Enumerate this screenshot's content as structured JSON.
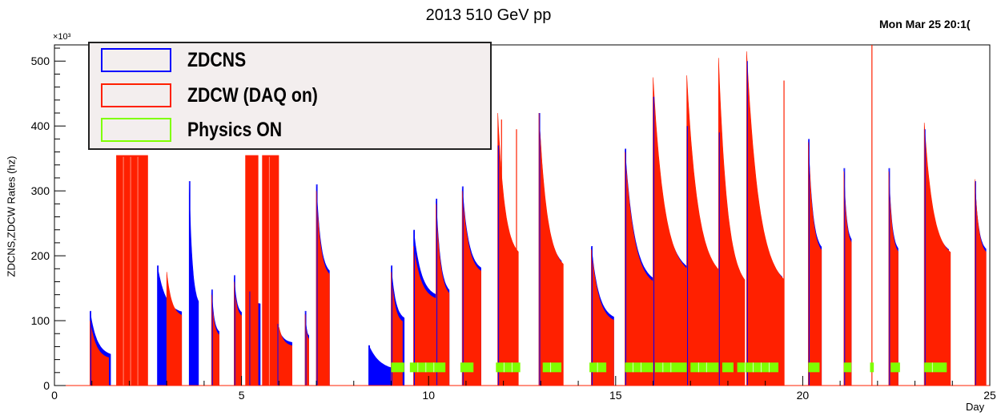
{
  "title": "2013 510 GeV pp",
  "timestamp": "Mon Mar 25 20:1(",
  "chart_data": {
    "type": "bar",
    "title": "2013 510 GeV pp",
    "xlabel": "Day",
    "ylabel": "ZDCNS,ZDCW Rates (hz)",
    "y_exponent_label": "×10³",
    "xlim": [
      0,
      25
    ],
    "ylim": [
      0,
      525
    ],
    "x_ticks": [
      "0",
      "5",
      "10",
      "15",
      "20",
      "25"
    ],
    "y_ticks": [
      "0",
      "100",
      "200",
      "300",
      "400",
      "500"
    ],
    "grid": false,
    "legend_position": "top-left",
    "series": [
      {
        "name": "ZDCNS",
        "color": "#0000ff",
        "fills": [
          {
            "start": 0.95,
            "end": 1.5,
            "peak": 115,
            "low": 45
          },
          {
            "start": 2.75,
            "end": 3.4,
            "peak": 185,
            "low": 110
          },
          {
            "start": 3.6,
            "end": 3.85,
            "peak": 315,
            "low": 120
          },
          {
            "start": 4.2,
            "end": 4.4,
            "peak": 148,
            "low": 80
          },
          {
            "start": 4.8,
            "end": 5.0,
            "peak": 170,
            "low": 110
          },
          {
            "start": 5.2,
            "end": 5.5,
            "peak": 145,
            "low": 125
          },
          {
            "start": 5.95,
            "end": 6.35,
            "peak": 95,
            "low": 65
          },
          {
            "start": 6.7,
            "end": 6.8,
            "peak": 115,
            "low": 75
          },
          {
            "start": 7.0,
            "end": 7.35,
            "peak": 310,
            "low": 170
          },
          {
            "start": 8.4,
            "end": 9.3,
            "peak": 62,
            "low": 22
          },
          {
            "start": 9.0,
            "end": 9.35,
            "peak": 185,
            "low": 100
          },
          {
            "start": 9.6,
            "end": 10.2,
            "peak": 240,
            "low": 135
          },
          {
            "start": 10.2,
            "end": 10.55,
            "peak": 288,
            "low": 140
          },
          {
            "start": 10.9,
            "end": 11.4,
            "peak": 307,
            "low": 175
          },
          {
            "start": 11.85,
            "end": 12.3,
            "peak": 370,
            "low": 200
          },
          {
            "start": 12.95,
            "end": 13.55,
            "peak": 420,
            "low": 180
          },
          {
            "start": 14.35,
            "end": 14.95,
            "peak": 215,
            "low": 100
          },
          {
            "start": 15.25,
            "end": 16.0,
            "peak": 365,
            "low": 155
          },
          {
            "start": 16.0,
            "end": 16.9,
            "peak": 445,
            "low": 170
          },
          {
            "start": 16.9,
            "end": 17.75,
            "peak": 400,
            "low": 165
          },
          {
            "start": 17.75,
            "end": 18.4,
            "peak": 390,
            "low": 150
          },
          {
            "start": 18.5,
            "end": 19.45,
            "peak": 500,
            "low": 150
          },
          {
            "start": 20.15,
            "end": 20.5,
            "peak": 380,
            "low": 205
          },
          {
            "start": 21.1,
            "end": 21.3,
            "peak": 335,
            "low": 220
          },
          {
            "start": 22.3,
            "end": 22.55,
            "peak": 335,
            "low": 205
          },
          {
            "start": 23.25,
            "end": 23.9,
            "peak": 395,
            "low": 200
          },
          {
            "start": 24.6,
            "end": 24.9,
            "peak": 315,
            "low": 205
          }
        ]
      },
      {
        "name": "ZDCW (DAQ on)",
        "color": "#ff2000",
        "fills": [
          {
            "start": 0.95,
            "end": 1.45,
            "peak": 100,
            "low": 40
          },
          {
            "start": 1.65,
            "end": 2.5,
            "peak": 355,
            "low": 355
          },
          {
            "start": 3.0,
            "end": 3.4,
            "peak": 175,
            "low": 105
          },
          {
            "start": 4.2,
            "end": 4.4,
            "peak": 140,
            "low": 75
          },
          {
            "start": 4.8,
            "end": 5.0,
            "peak": 160,
            "low": 105
          },
          {
            "start": 5.1,
            "end": 5.45,
            "peak": 355,
            "low": 355
          },
          {
            "start": 5.55,
            "end": 6.0,
            "peak": 355,
            "low": 355
          },
          {
            "start": 6.0,
            "end": 6.35,
            "peak": 90,
            "low": 60
          },
          {
            "start": 6.7,
            "end": 6.8,
            "peak": 110,
            "low": 70
          },
          {
            "start": 7.0,
            "end": 7.35,
            "peak": 300,
            "low": 165
          },
          {
            "start": 9.0,
            "end": 9.3,
            "peak": 175,
            "low": 95
          },
          {
            "start": 9.6,
            "end": 10.2,
            "peak": 215,
            "low": 130
          },
          {
            "start": 10.2,
            "end": 10.55,
            "peak": 280,
            "low": 135
          },
          {
            "start": 10.9,
            "end": 11.4,
            "peak": 300,
            "low": 170
          },
          {
            "start": 11.85,
            "end": 12.4,
            "peak": 420,
            "low": 195
          },
          {
            "start": 12.95,
            "end": 13.6,
            "peak": 420,
            "low": 175
          },
          {
            "start": 14.35,
            "end": 14.95,
            "peak": 210,
            "low": 95
          },
          {
            "start": 15.25,
            "end": 16.0,
            "peak": 360,
            "low": 150
          },
          {
            "start": 16.0,
            "end": 16.9,
            "peak": 475,
            "low": 165
          },
          {
            "start": 16.9,
            "end": 17.8,
            "peak": 478,
            "low": 160
          },
          {
            "start": 17.75,
            "end": 18.45,
            "peak": 505,
            "low": 145
          },
          {
            "start": 18.5,
            "end": 19.5,
            "peak": 515,
            "low": 145
          },
          {
            "start": 20.15,
            "end": 20.5,
            "peak": 375,
            "low": 200
          },
          {
            "start": 21.1,
            "end": 21.3,
            "peak": 330,
            "low": 215
          },
          {
            "start": 22.3,
            "end": 22.55,
            "peak": 330,
            "low": 200
          },
          {
            "start": 23.25,
            "end": 23.95,
            "peak": 405,
            "low": 195
          },
          {
            "start": 24.6,
            "end": 24.9,
            "peak": 318,
            "low": 200
          }
        ],
        "spikes": [
          {
            "day": 19.5,
            "value": 470
          },
          {
            "day": 21.85,
            "value": 525
          },
          {
            "day": 11.95,
            "value": 410
          },
          {
            "day": 12.35,
            "value": 395
          }
        ]
      },
      {
        "name": "Physics ON",
        "color": "#7fff00",
        "intervals": [
          [
            9.0,
            9.35
          ],
          [
            9.5,
            10.45
          ],
          [
            10.85,
            11.2
          ],
          [
            11.8,
            12.45
          ],
          [
            13.05,
            13.55
          ],
          [
            14.3,
            14.75
          ],
          [
            15.25,
            16.0
          ],
          [
            16.05,
            16.9
          ],
          [
            17.0,
            17.75
          ],
          [
            17.85,
            18.15
          ],
          [
            18.25,
            19.35
          ],
          [
            20.15,
            20.45
          ],
          [
            21.1,
            21.3
          ],
          [
            21.8,
            21.9
          ],
          [
            22.35,
            22.6
          ],
          [
            23.25,
            23.85
          ]
        ],
        "value": 28
      }
    ]
  },
  "legend": {
    "items": [
      {
        "label": "ZDCNS",
        "color": "#0000ff"
      },
      {
        "label": "ZDCW (DAQ on)",
        "color": "#ff2000"
      },
      {
        "label": "Physics ON",
        "color": "#7fff00"
      }
    ]
  }
}
